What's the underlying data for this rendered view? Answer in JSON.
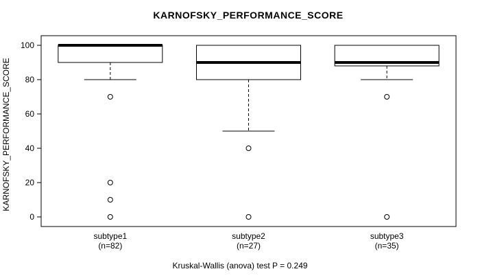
{
  "title": "KARNOFSKY_PERFORMANCE_SCORE",
  "footer": "Kruskal-Wallis (anova) test P = 0.249",
  "axes": {
    "y_label": "KARNOFSKY_PERFORMANCE_SCORE",
    "y_ticks": [
      "0",
      "20",
      "40",
      "60",
      "80",
      "100"
    ]
  },
  "colors": {
    "stroke": "#000000",
    "fill": "#ffffff",
    "background": "#ffffff"
  },
  "chart_data": {
    "type": "boxplot",
    "title": "KARNOFSKY_PERFORMANCE_SCORE",
    "xlabel": "",
    "ylabel": "KARNOFSKY_PERFORMANCE_SCORE",
    "ylim": [
      0,
      100
    ],
    "yticks": [
      0,
      20,
      40,
      60,
      80,
      100
    ],
    "grid": false,
    "legend": "none",
    "footer": "Kruskal-Wallis (anova) test P = 0.249",
    "groups": [
      {
        "label": "subtype1",
        "sublabel": "(n=82)",
        "n": 82,
        "whisker_low": 80,
        "q1": 90,
        "median": 100,
        "q3": 100,
        "whisker_high": 100,
        "outliers": [
          70,
          20,
          10,
          0
        ]
      },
      {
        "label": "subtype2",
        "sublabel": "(n=27)",
        "n": 27,
        "whisker_low": 50,
        "q1": 80,
        "median": 90,
        "q3": 100,
        "whisker_high": 100,
        "outliers": [
          40,
          0
        ]
      },
      {
        "label": "subtype3",
        "sublabel": "(n=35)",
        "n": 35,
        "whisker_low": 80,
        "q1": 88,
        "median": 90,
        "q3": 100,
        "whisker_high": 100,
        "outliers": [
          70,
          0
        ]
      }
    ]
  }
}
